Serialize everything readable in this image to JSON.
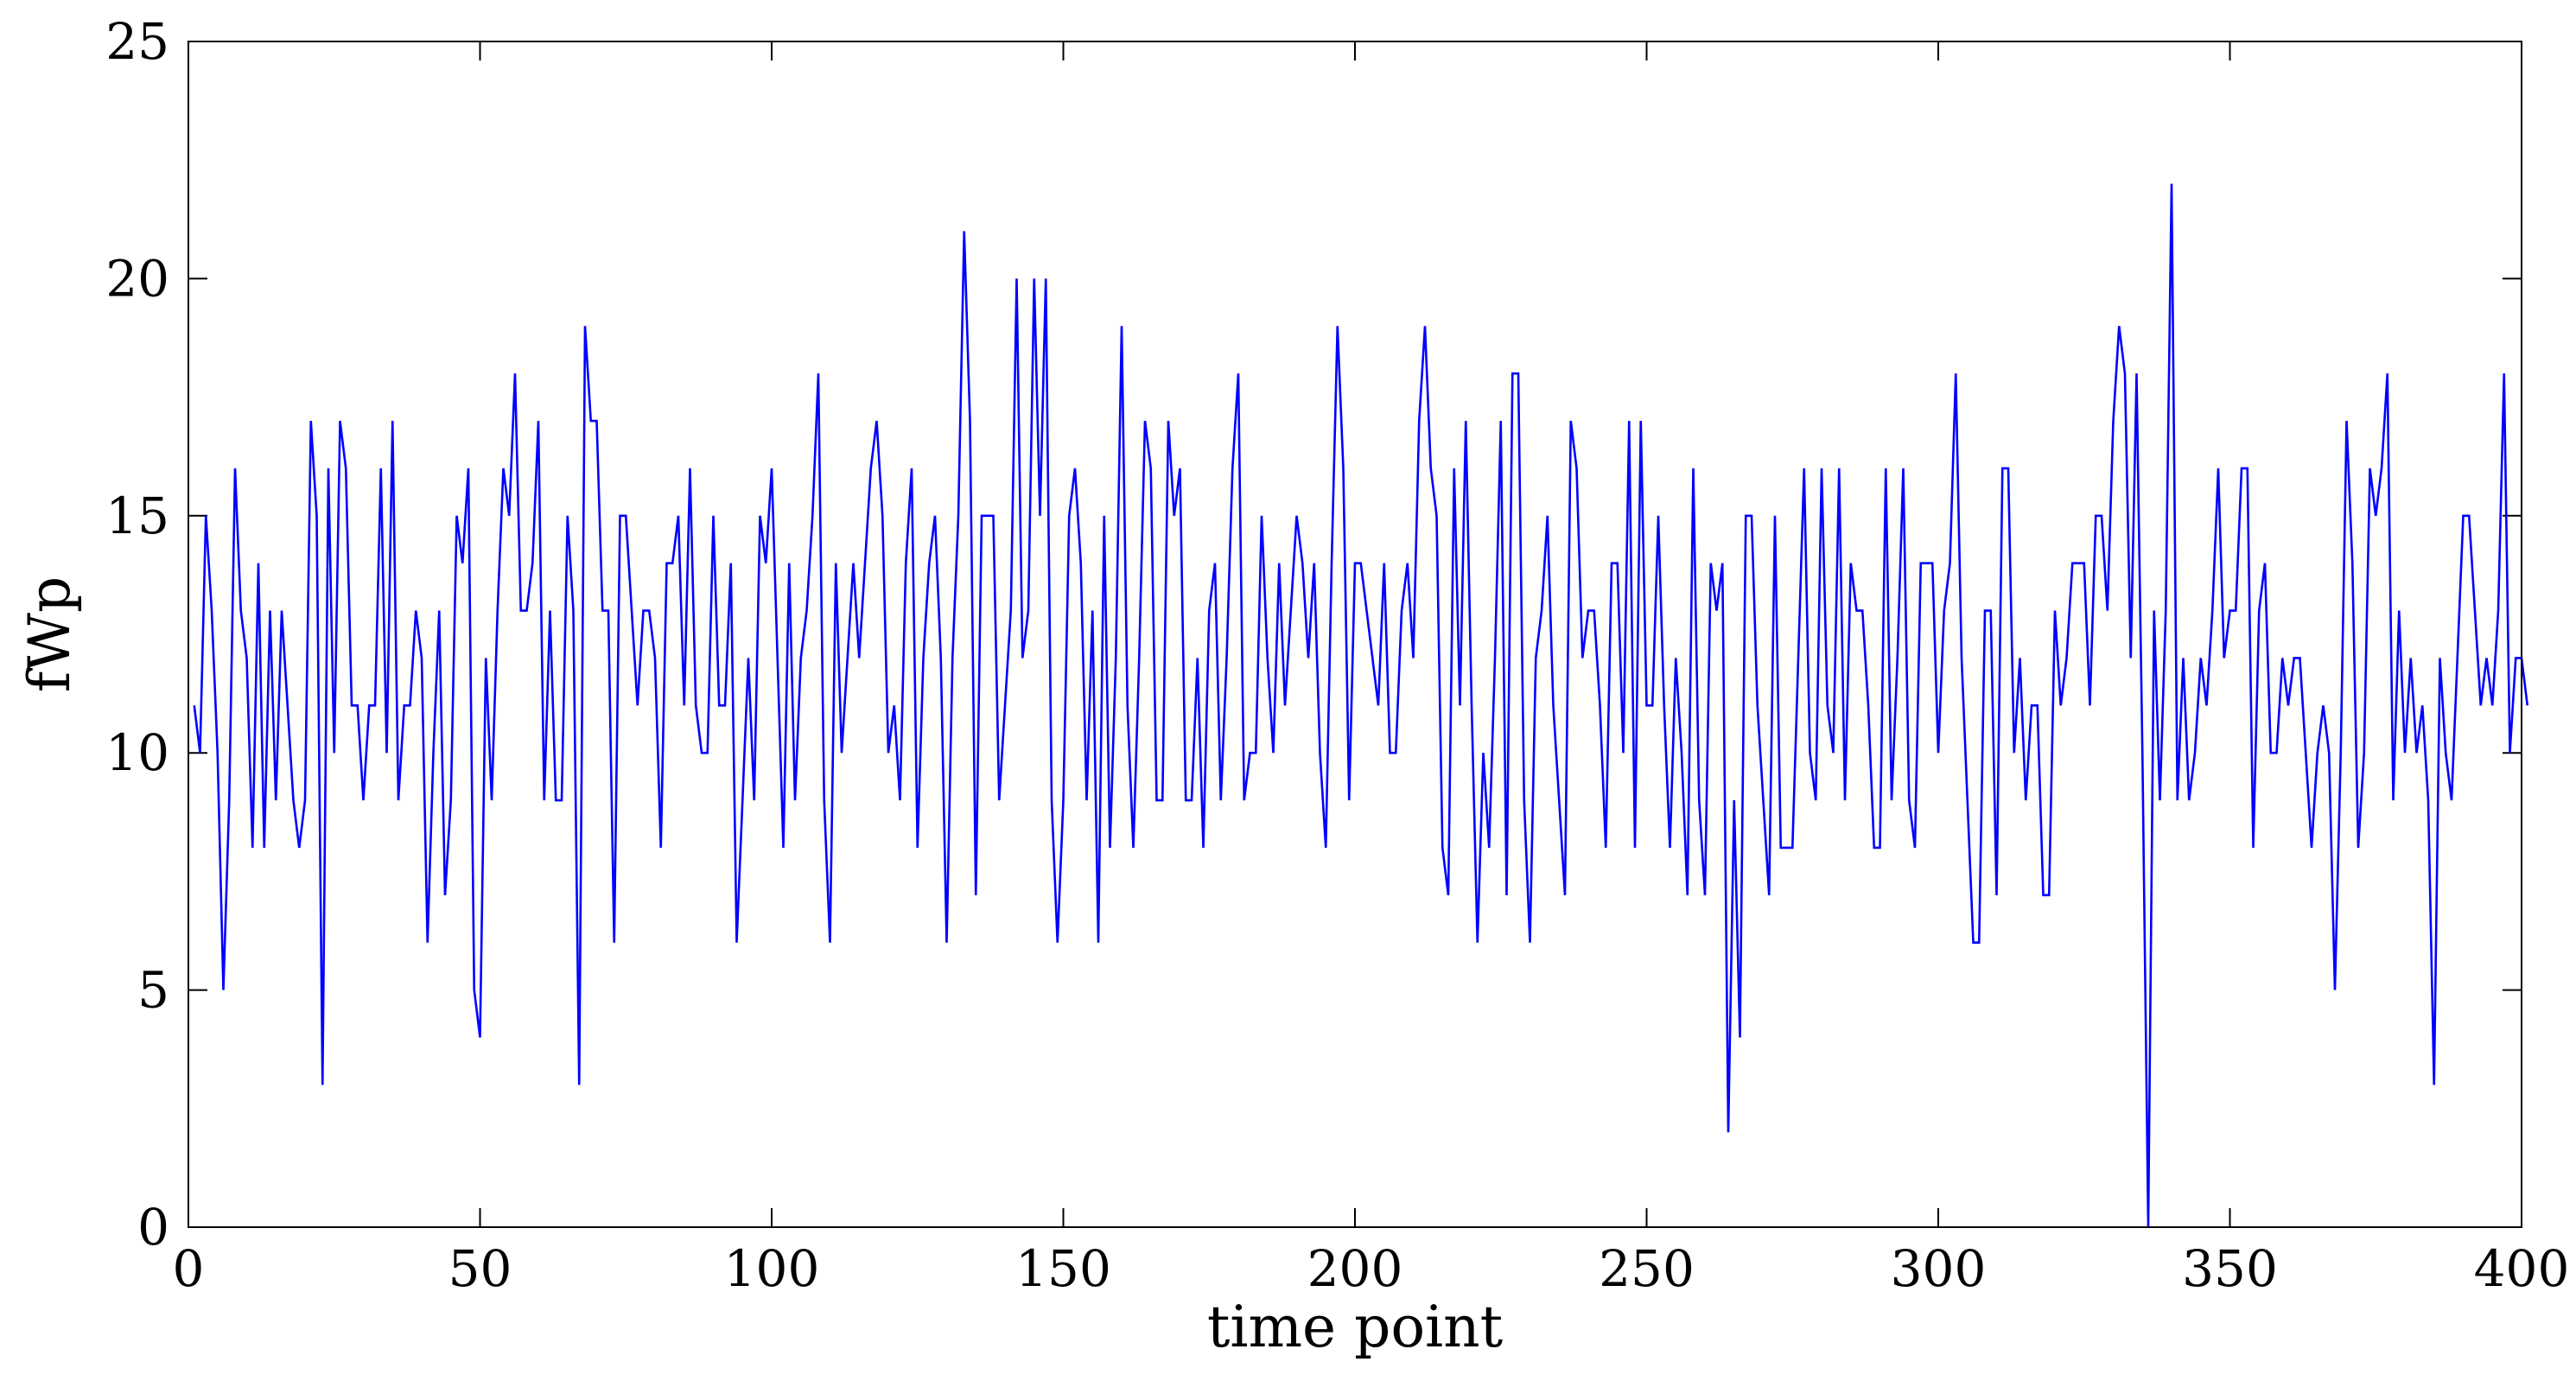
{
  "chart_data": {
    "type": "line",
    "title": "",
    "xlabel": "time point",
    "ylabel": "fWp",
    "xlim": [
      0,
      400
    ],
    "ylim": [
      0,
      25
    ],
    "xticks": [
      0,
      50,
      100,
      150,
      200,
      250,
      300,
      350,
      400
    ],
    "yticks": [
      0,
      5,
      10,
      15,
      20,
      25
    ],
    "grid": false,
    "legend": "none",
    "line_color": "#0000ff",
    "series": [
      {
        "x_start": 1,
        "x_step": 1,
        "values": [
          11,
          10,
          15,
          13,
          10,
          5,
          9,
          16,
          13,
          12,
          8,
          14,
          8,
          13,
          9,
          13,
          11,
          9,
          8,
          9,
          17,
          15,
          3,
          16,
          10,
          17,
          16,
          11,
          11,
          9,
          11,
          11,
          16,
          10,
          17,
          9,
          11,
          11,
          13,
          12,
          6,
          10,
          13,
          7,
          9,
          15,
          14,
          16,
          5,
          4,
          12,
          9,
          13,
          16,
          15,
          18,
          13,
          13,
          14,
          17,
          9,
          13,
          9,
          9,
          15,
          13,
          3,
          19,
          17,
          17,
          13,
          13,
          6,
          15,
          15,
          13,
          11,
          13,
          13,
          12,
          8,
          14,
          14,
          15,
          11,
          16,
          11,
          10,
          10,
          15,
          11,
          11,
          14,
          6,
          9,
          12,
          9,
          15,
          14,
          16,
          12,
          8,
          14,
          9,
          12,
          13,
          15,
          18,
          9,
          6,
          14,
          10,
          12,
          14,
          12,
          14,
          16,
          17,
          15,
          10,
          11,
          9,
          14,
          16,
          8,
          12,
          14,
          15,
          12,
          6,
          12,
          15,
          21,
          17,
          7,
          15,
          15,
          15,
          9,
          11,
          13,
          20,
          12,
          13,
          20,
          15,
          20,
          9,
          6,
          9,
          15,
          16,
          14,
          9,
          13,
          6,
          15,
          8,
          12,
          19,
          11,
          8,
          12,
          17,
          16,
          9,
          9,
          17,
          15,
          16,
          9,
          9,
          12,
          8,
          13,
          14,
          9,
          12,
          16,
          18,
          9,
          10,
          10,
          15,
          12,
          10,
          14,
          11,
          13,
          15,
          14,
          12,
          14,
          10,
          8,
          14,
          19,
          16,
          9,
          14,
          14,
          13,
          12,
          11,
          14,
          10,
          10,
          13,
          14,
          12,
          17,
          19,
          16,
          15,
          8,
          7,
          16,
          11,
          17,
          11,
          6,
          10,
          8,
          12,
          17,
          7,
          18,
          18,
          9,
          6,
          12,
          13,
          15,
          11,
          9,
          7,
          17,
          16,
          12,
          13,
          13,
          11,
          8,
          14,
          14,
          10,
          17,
          8,
          17,
          11,
          11,
          15,
          11,
          8,
          12,
          10,
          7,
          16,
          9,
          7,
          14,
          13,
          14,
          2,
          9,
          4,
          15,
          15,
          11,
          9,
          7,
          15,
          8,
          8,
          8,
          12,
          16,
          10,
          9,
          16,
          11,
          10,
          16,
          9,
          14,
          13,
          13,
          11,
          8,
          8,
          16,
          9,
          12,
          16,
          9,
          8,
          14,
          14,
          14,
          10,
          13,
          14,
          18,
          12,
          9,
          6,
          6,
          13,
          13,
          7,
          16,
          16,
          10,
          12,
          9,
          11,
          11,
          7,
          7,
          13,
          11,
          12,
          14,
          14,
          14,
          11,
          15,
          15,
          13,
          17,
          19,
          18,
          12,
          18,
          10,
          0,
          13,
          9,
          13,
          22,
          9,
          12,
          9,
          10,
          12,
          11,
          13,
          16,
          12,
          13,
          13,
          16,
          16,
          8,
          13,
          14,
          10,
          10,
          12,
          11,
          12,
          12,
          10,
          8,
          10,
          11,
          10,
          5,
          10,
          17,
          14,
          8,
          10,
          16,
          15,
          16,
          18,
          9,
          13,
          10,
          12,
          10,
          11,
          9,
          3,
          12,
          10,
          9,
          12,
          15,
          15,
          13,
          11,
          12,
          11,
          13,
          18,
          10,
          12,
          12,
          11
        ]
      }
    ]
  }
}
